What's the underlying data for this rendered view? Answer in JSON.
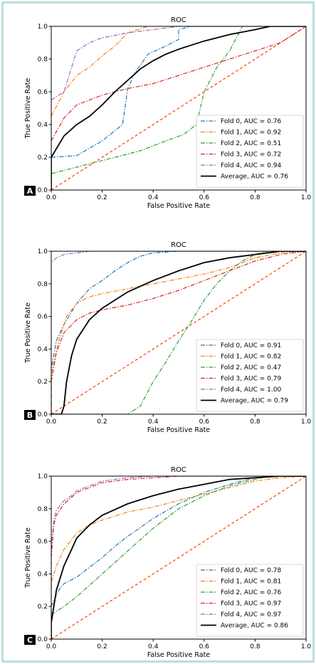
{
  "chart_data": [
    {
      "panel_label": "A",
      "type": "line",
      "title": "ROC",
      "xlabel": "False Positive Rate",
      "ylabel": "True Positive Rate",
      "xlim": [
        0,
        1
      ],
      "ylim": [
        0,
        1
      ],
      "xticks": [
        "0.0",
        "0.2",
        "0.4",
        "0.6",
        "0.8",
        "1.0"
      ],
      "yticks": [
        "0.0",
        "0.2",
        "0.4",
        "0.6",
        "0.8",
        "1.0"
      ],
      "grid": false,
      "legend_position": "lower-right",
      "series": [
        {
          "name": "Fold 0, AUC = 0.76",
          "color": "#1f77b4",
          "style": "dashdot",
          "x": [
            0,
            0,
            0.1,
            0.2,
            0.28,
            0.3,
            0.33,
            0.38,
            0.45,
            0.5,
            0.5,
            0.55,
            0.6,
            1
          ],
          "y": [
            0,
            0.2,
            0.21,
            0.3,
            0.4,
            0.62,
            0.72,
            0.83,
            0.88,
            0.92,
            0.98,
            1,
            1,
            1
          ]
        },
        {
          "name": "Fold 1, AUC = 0.92",
          "color": "#ff7f0e",
          "style": "dashdot",
          "x": [
            0,
            0,
            0.05,
            0.1,
            0.15,
            0.2,
            0.25,
            0.3,
            0.38,
            0.45,
            1
          ],
          "y": [
            0,
            0.45,
            0.6,
            0.7,
            0.75,
            0.82,
            0.88,
            0.96,
            1,
            1,
            1
          ]
        },
        {
          "name": "Fold 2, AUC = 0.51",
          "color": "#2ca02c",
          "style": "dashdot",
          "x": [
            0,
            0,
            0.05,
            0.15,
            0.25,
            0.35,
            0.45,
            0.52,
            0.57,
            0.6,
            0.65,
            0.7,
            0.75,
            1
          ],
          "y": [
            0,
            0.1,
            0.12,
            0.16,
            0.2,
            0.24,
            0.3,
            0.34,
            0.4,
            0.6,
            0.75,
            0.85,
            1,
            1
          ]
        },
        {
          "name": "Fold 3, AUC = 0.72",
          "color": "#d62728",
          "style": "dashdot",
          "x": [
            0,
            0,
            0.05,
            0.1,
            0.2,
            0.3,
            0.4,
            0.5,
            0.6,
            0.7,
            0.8,
            0.9,
            1
          ],
          "y": [
            0,
            0.3,
            0.44,
            0.52,
            0.58,
            0.62,
            0.65,
            0.7,
            0.75,
            0.8,
            0.85,
            0.9,
            1
          ]
        },
        {
          "name": "Fold 4, AUC = 0.94",
          "color": "#9467bd",
          "style": "dashdot",
          "x": [
            0,
            0,
            0.05,
            0.08,
            0.1,
            0.15,
            0.2,
            0.3,
            0.4,
            0.5,
            1
          ],
          "y": [
            0,
            0.55,
            0.6,
            0.75,
            0.85,
            0.9,
            0.93,
            0.96,
            0.98,
            1,
            1
          ]
        },
        {
          "name": "Average, AUC = 0.76",
          "color": "#000000",
          "style": "solid",
          "x": [
            0,
            0,
            0.05,
            0.1,
            0.15,
            0.2,
            0.25,
            0.3,
            0.35,
            0.4,
            0.45,
            0.5,
            0.6,
            0.7,
            0.8,
            0.86,
            1
          ],
          "y": [
            0,
            0.2,
            0.33,
            0.4,
            0.45,
            0.52,
            0.6,
            0.67,
            0.74,
            0.79,
            0.83,
            0.86,
            0.91,
            0.95,
            0.98,
            1,
            1
          ]
        },
        {
          "name": "",
          "color": "#ff4000",
          "style": "dashed",
          "x": [
            0,
            1
          ],
          "y": [
            0,
            1
          ]
        }
      ]
    },
    {
      "panel_label": "B",
      "type": "line",
      "title": "ROC",
      "xlabel": "False Positive Rate",
      "ylabel": "True Positive Rate",
      "xlim": [
        0,
        1
      ],
      "ylim": [
        0,
        1
      ],
      "xticks": [
        "0.0",
        "0.2",
        "0.4",
        "0.6",
        "0.8",
        "1.0"
      ],
      "yticks": [
        "0.0",
        "0.2",
        "0.4",
        "0.6",
        "0.8",
        "1.0"
      ],
      "grid": false,
      "legend_position": "lower-right",
      "series": [
        {
          "name": "Fold 0, AUC = 0.91",
          "color": "#1f77b4",
          "style": "dashdot",
          "x": [
            0,
            0,
            0.02,
            0.05,
            0.1,
            0.15,
            0.2,
            0.25,
            0.3,
            0.35,
            0.4,
            0.5,
            1
          ],
          "y": [
            0,
            0.28,
            0.45,
            0.55,
            0.68,
            0.77,
            0.82,
            0.88,
            0.93,
            0.97,
            0.99,
            1,
            1
          ]
        },
        {
          "name": "Fold 1, AUC = 0.82",
          "color": "#ff7f0e",
          "style": "dashdot",
          "x": [
            0,
            0,
            0.03,
            0.06,
            0.1,
            0.15,
            0.2,
            0.3,
            0.4,
            0.5,
            0.6,
            0.7,
            0.8,
            0.9,
            1
          ],
          "y": [
            0,
            0.25,
            0.45,
            0.6,
            0.68,
            0.72,
            0.74,
            0.77,
            0.8,
            0.83,
            0.86,
            0.9,
            0.96,
            0.99,
            1
          ]
        },
        {
          "name": "Fold 2, AUC = 0.47",
          "color": "#2ca02c",
          "style": "dashdot",
          "x": [
            0,
            0.3,
            0.35,
            0.4,
            0.45,
            0.5,
            0.55,
            0.6,
            0.65,
            0.7,
            0.75,
            0.8,
            0.85,
            1
          ],
          "y": [
            0,
            0,
            0.05,
            0.2,
            0.32,
            0.45,
            0.57,
            0.7,
            0.8,
            0.88,
            0.94,
            0.98,
            1,
            1
          ]
        },
        {
          "name": "Fold 3, AUC = 0.79",
          "color": "#d62728",
          "style": "dashdot",
          "x": [
            0,
            0,
            0.02,
            0.05,
            0.1,
            0.15,
            0.2,
            0.3,
            0.4,
            0.5,
            0.6,
            0.7,
            0.8,
            0.9,
            1
          ],
          "y": [
            0,
            0.2,
            0.38,
            0.5,
            0.58,
            0.62,
            0.64,
            0.67,
            0.71,
            0.76,
            0.82,
            0.88,
            0.94,
            0.98,
            1
          ]
        },
        {
          "name": "Fold 4, AUC = 1.00",
          "color": "#9467bd",
          "style": "dashdot",
          "x": [
            0,
            0,
            0.02,
            0.05,
            0.1,
            0.15,
            1
          ],
          "y": [
            0,
            0.93,
            0.96,
            0.98,
            0.99,
            1,
            1
          ]
        },
        {
          "name": "Average, AUC = 0.79",
          "color": "#000000",
          "style": "solid",
          "x": [
            0,
            0.04,
            0.05,
            0.06,
            0.08,
            0.1,
            0.15,
            0.2,
            0.3,
            0.4,
            0.5,
            0.6,
            0.7,
            0.8,
            0.9,
            1
          ],
          "y": [
            0,
            0,
            0.05,
            0.2,
            0.36,
            0.46,
            0.58,
            0.65,
            0.75,
            0.82,
            0.88,
            0.93,
            0.96,
            0.98,
            1,
            1
          ]
        },
        {
          "name": "",
          "color": "#ff4000",
          "style": "dashed",
          "x": [
            0,
            1
          ],
          "y": [
            0,
            1
          ]
        }
      ]
    },
    {
      "panel_label": "C",
      "type": "line",
      "title": "ROC",
      "xlabel": "False Positive Rate",
      "ylabel": "True Positive Rate",
      "xlim": [
        0,
        1
      ],
      "ylim": [
        0,
        1
      ],
      "xticks": [
        "0.0",
        "0.2",
        "0.4",
        "0.6",
        "0.8",
        "1.0"
      ],
      "yticks": [
        "0.0",
        "0.2",
        "0.4",
        "0.6",
        "0.8",
        "1.0"
      ],
      "grid": false,
      "legend_position": "lower-right",
      "series": [
        {
          "name": "Fold 0, AUC = 0.78",
          "color": "#1f77b4",
          "style": "dashdot",
          "x": [
            0,
            0,
            0.03,
            0.05,
            0.1,
            0.15,
            0.2,
            0.25,
            0.3,
            0.4,
            0.5,
            0.6,
            0.7,
            0.8,
            0.9,
            1
          ],
          "y": [
            0,
            0.2,
            0.3,
            0.34,
            0.38,
            0.44,
            0.5,
            0.57,
            0.63,
            0.74,
            0.83,
            0.9,
            0.95,
            0.99,
            1,
            1
          ]
        },
        {
          "name": "Fold 1, AUC = 0.81",
          "color": "#ff7f0e",
          "style": "dashdot",
          "x": [
            0,
            0,
            0.02,
            0.05,
            0.1,
            0.15,
            0.2,
            0.3,
            0.4,
            0.5,
            0.6,
            0.7,
            0.8,
            0.9,
            1
          ],
          "y": [
            0,
            0.35,
            0.45,
            0.55,
            0.65,
            0.7,
            0.73,
            0.78,
            0.81,
            0.85,
            0.89,
            0.93,
            0.97,
            0.99,
            1
          ]
        },
        {
          "name": "Fold 2, AUC = 0.76",
          "color": "#2ca02c",
          "style": "dashdot",
          "x": [
            0,
            0,
            0.05,
            0.1,
            0.15,
            0.2,
            0.3,
            0.4,
            0.5,
            0.6,
            0.7,
            0.8,
            0.85,
            1
          ],
          "y": [
            0,
            0.15,
            0.2,
            0.26,
            0.33,
            0.4,
            0.54,
            0.68,
            0.8,
            0.88,
            0.94,
            0.98,
            1,
            1
          ]
        },
        {
          "name": "Fold 3, AUC = 0.97",
          "color": "#d62728",
          "style": "dashdot",
          "x": [
            0,
            0,
            0.01,
            0.02,
            0.05,
            0.08,
            0.1,
            0.15,
            0.2,
            0.3,
            0.4,
            0.5,
            1
          ],
          "y": [
            0,
            0.5,
            0.7,
            0.76,
            0.83,
            0.87,
            0.9,
            0.93,
            0.96,
            0.98,
            0.99,
            1,
            1
          ]
        },
        {
          "name": "Fold 4, AUC = 0.97",
          "color": "#9467bd",
          "style": "dashdot",
          "x": [
            0,
            0,
            0.01,
            0.02,
            0.05,
            0.08,
            0.1,
            0.15,
            0.2,
            0.3,
            0.4,
            0.5,
            1
          ],
          "y": [
            0,
            0.55,
            0.73,
            0.79,
            0.85,
            0.88,
            0.91,
            0.94,
            0.97,
            0.99,
            1,
            1,
            1
          ]
        },
        {
          "name": "Average, AUC = 0.86",
          "color": "#000000",
          "style": "solid",
          "x": [
            0,
            0,
            0.02,
            0.05,
            0.08,
            0.1,
            0.15,
            0.2,
            0.3,
            0.4,
            0.5,
            0.6,
            0.7,
            0.8,
            0.9,
            1
          ],
          "y": [
            0,
            0.1,
            0.3,
            0.45,
            0.55,
            0.62,
            0.7,
            0.76,
            0.83,
            0.88,
            0.92,
            0.95,
            0.98,
            0.99,
            1,
            1
          ]
        },
        {
          "name": "",
          "color": "#ff4000",
          "style": "dashed",
          "x": [
            0,
            1
          ],
          "y": [
            0,
            1
          ]
        }
      ]
    }
  ]
}
